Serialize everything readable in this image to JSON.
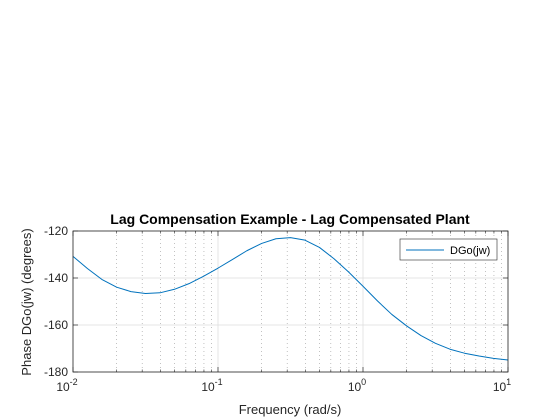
{
  "chart_data": {
    "type": "line",
    "title": "Lag Compensation Example - Lag Compensated Plant",
    "xlabel": "Frequency (rad/s)",
    "ylabel": "Phase DGo(jw) (degrees)",
    "xscale": "log",
    "xlim": [
      0.01,
      10
    ],
    "ylim": [
      -180,
      -120
    ],
    "xticks": [
      {
        "value": 0.01,
        "base": "10",
        "exp": "-2"
      },
      {
        "value": 0.1,
        "base": "10",
        "exp": "-1"
      },
      {
        "value": 1,
        "base": "10",
        "exp": "0"
      },
      {
        "value": 10,
        "base": "10",
        "exp": "1"
      }
    ],
    "yticks": [
      {
        "value": -120,
        "label": "-120"
      },
      {
        "value": -140,
        "label": "-140"
      },
      {
        "value": -160,
        "label": "-160"
      },
      {
        "value": -180,
        "label": "-180"
      }
    ],
    "grid": true,
    "minor_grid_x": true,
    "legend_position": "top-right",
    "series": [
      {
        "name": "DGo(jw)",
        "color": "#0072BD",
        "x": [
          0.01,
          0.0126,
          0.0158,
          0.02,
          0.0251,
          0.0316,
          0.0398,
          0.0501,
          0.0631,
          0.0794,
          0.1,
          0.126,
          0.158,
          0.2,
          0.251,
          0.316,
          0.398,
          0.501,
          0.631,
          0.794,
          1.0,
          1.26,
          1.58,
          2.0,
          2.51,
          3.16,
          3.98,
          5.01,
          6.31,
          7.94,
          10.0
        ],
        "y": [
          -130.8,
          -136.0,
          -140.6,
          -143.9,
          -145.8,
          -146.6,
          -146.3,
          -144.8,
          -142.4,
          -139.3,
          -135.8,
          -132.1,
          -128.4,
          -125.3,
          -123.3,
          -122.8,
          -123.9,
          -127.0,
          -131.8,
          -137.4,
          -143.5,
          -149.8,
          -155.5,
          -160.4,
          -164.5,
          -167.8,
          -170.3,
          -172.0,
          -173.2,
          -174.2,
          -174.9
        ]
      }
    ]
  }
}
